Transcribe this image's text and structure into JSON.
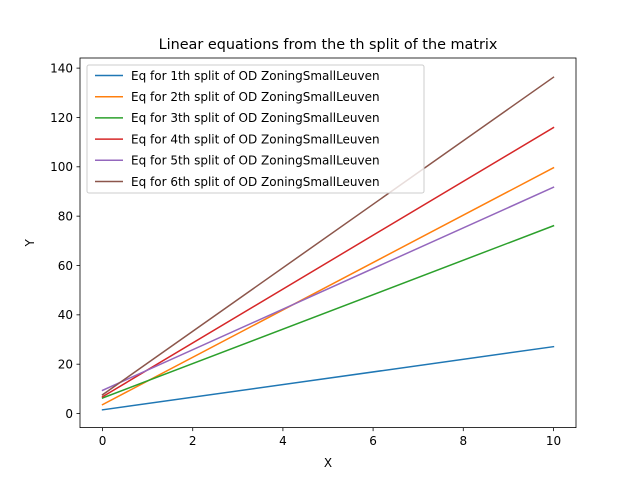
{
  "chart_data": {
    "type": "line",
    "title": "Linear equations from the th split of the matrix",
    "xlabel": "X",
    "ylabel": "Y",
    "xlim": [
      -0.5,
      10.5
    ],
    "ylim": [
      -5.7,
      144.1
    ],
    "xticks": [
      0,
      2,
      4,
      6,
      8,
      10
    ],
    "xtick_labels": [
      "0",
      "2",
      "4",
      "6",
      "8",
      "10"
    ],
    "yticks": [
      0,
      20,
      40,
      60,
      80,
      100,
      120,
      140
    ],
    "ytick_labels": [
      "0",
      "20",
      "40",
      "60",
      "80",
      "100",
      "120",
      "140"
    ],
    "grid": false,
    "legend_position": "upper-left",
    "x": [
      0,
      10
    ],
    "series": [
      {
        "name": "Eq for 1th split of OD ZoningSmallLeuven",
        "color": "#1f77b4",
        "values": [
          1.5,
          27.1
        ]
      },
      {
        "name": "Eq for 2th split of OD ZoningSmallLeuven",
        "color": "#ff7f0e",
        "values": [
          3.6,
          99.6
        ]
      },
      {
        "name": "Eq for 3th split of OD ZoningSmallLeuven",
        "color": "#2ca02c",
        "values": [
          6.3,
          76.1
        ]
      },
      {
        "name": "Eq for 4th split of OD ZoningSmallLeuven",
        "color": "#d62728",
        "values": [
          6.8,
          115.9
        ]
      },
      {
        "name": "Eq for 5th split of OD ZoningSmallLeuven",
        "color": "#9467bd",
        "values": [
          9.4,
          91.7
        ]
      },
      {
        "name": "Eq for 6th split of OD ZoningSmallLeuven",
        "color": "#8c564b",
        "values": [
          7.6,
          136.3
        ]
      }
    ]
  }
}
